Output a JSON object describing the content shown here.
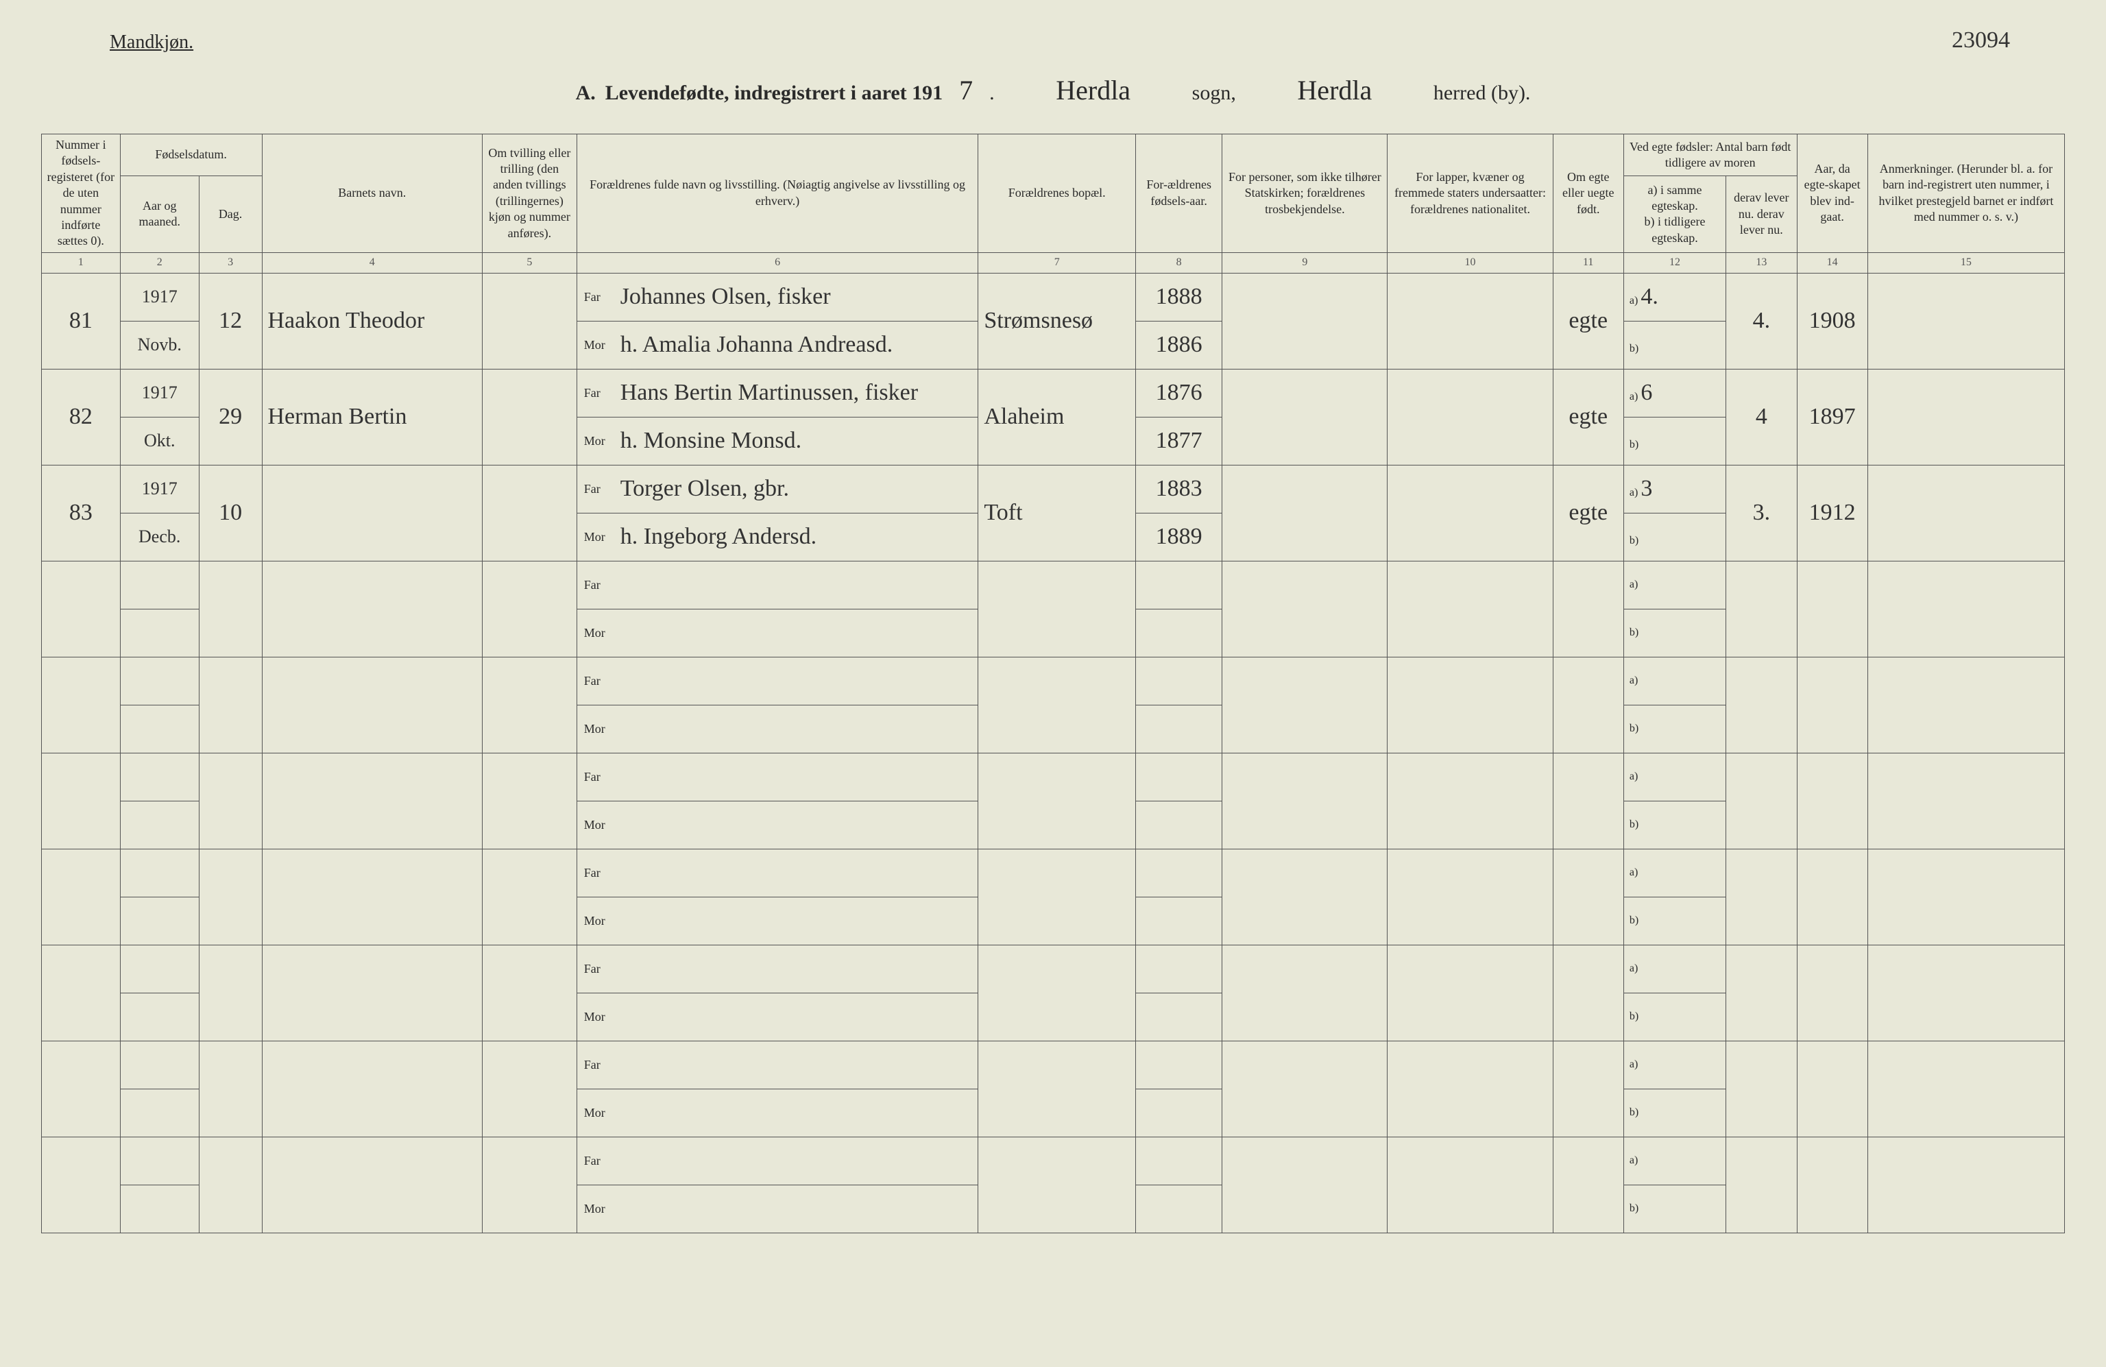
{
  "colors": {
    "page_bg": "#e8e8d8",
    "ink": "#2a2a2a",
    "rule": "#555555",
    "hand_ink": "#333333"
  },
  "header": {
    "gender": "Mandkjøn.",
    "reference": "23094",
    "title_prefix": "A.",
    "title_main": "Levendefødte, indregistrert i aaret 191",
    "year_suffix": "7",
    "sogn_label": "sogn,",
    "sogn_value": "Herdla",
    "herred_label": "herred (by).",
    "herred_value": "Herdla"
  },
  "columns": {
    "c1": "Nummer i fødsels-registeret (for de uten nummer indførte sættes 0).",
    "c2_group": "Fødselsdatum.",
    "c2": "Aar og maaned.",
    "c3": "Dag.",
    "c4": "Barnets navn.",
    "c5": "Om tvilling eller trilling (den anden tvillings (trillingernes) kjøn og nummer anføres).",
    "c6": "Forældrenes fulde navn og livsstilling. (Nøiagtig angivelse av livsstilling og erhverv.)",
    "c7": "Forældrenes bopæl.",
    "c8": "For-ældrenes fødsels-aar.",
    "c9": "For personer, som ikke tilhører Statskirken; forældrenes trosbekjendelse.",
    "c10": "For lapper, kvæner og fremmede staters undersaatter: forældrenes nationalitet.",
    "c11": "Om egte eller uegte født.",
    "c12_group": "Ved egte fødsler: Antal barn født tidligere av moren",
    "c12a": "a) i samme egteskap.",
    "c12b": "b) i tidligere egteskap.",
    "c13": "derav lever nu. derav lever nu.",
    "c14": "Aar, da egte-skapet blev ind-gaat.",
    "c15": "Anmerkninger. (Herunder bl. a. for barn ind-registrert uten nummer, i hvilket prestegjeld barnet er indført med nummer o. s. v.)"
  },
  "col_numbers": [
    "1",
    "2",
    "3",
    "4",
    "5",
    "6",
    "7",
    "8",
    "9",
    "10",
    "11",
    "12",
    "13",
    "14",
    "15"
  ],
  "far_label": "Far",
  "mor_label": "Mor",
  "a_label": "a)",
  "b_label": "b)",
  "rows": [
    {
      "num": "81",
      "year_month_top": "1917",
      "year_month_bot": "Novb.",
      "day": "12",
      "child": "Haakon Theodor",
      "twin": "",
      "far_name": "Johannes Olsen, fisker",
      "mor_name": "h. Amalia Johanna Andreasd.",
      "bopael": "Strømsnesø",
      "far_year": "1888",
      "mor_year": "1886",
      "church": "",
      "nationality": "",
      "legit": "egte",
      "a_val": "4.",
      "b_val": "",
      "derav": "4.",
      "marriage_year": "1908",
      "remarks": ""
    },
    {
      "num": "82",
      "year_month_top": "1917",
      "year_month_bot": "Okt.",
      "day": "29",
      "child": "Herman Bertin",
      "twin": "",
      "far_name": "Hans Bertin Martinussen, fisker",
      "mor_name": "h. Monsine Monsd.",
      "bopael": "Alaheim",
      "far_year": "1876",
      "mor_year": "1877",
      "church": "",
      "nationality": "",
      "legit": "egte",
      "a_val": "6",
      "b_val": "",
      "derav": "4",
      "marriage_year": "1897",
      "remarks": ""
    },
    {
      "num": "83",
      "year_month_top": "1917",
      "year_month_bot": "Decb.",
      "day": "10",
      "child": "",
      "twin": "",
      "far_name": "Torger Olsen, gbr.",
      "mor_name": "h. Ingeborg Andersd.",
      "bopael": "Toft",
      "far_year": "1883",
      "mor_year": "1889",
      "church": "",
      "nationality": "",
      "legit": "egte",
      "a_val": "3",
      "b_val": "",
      "derav": "3.",
      "marriage_year": "1912",
      "remarks": ""
    }
  ],
  "empty_row_count": 7
}
